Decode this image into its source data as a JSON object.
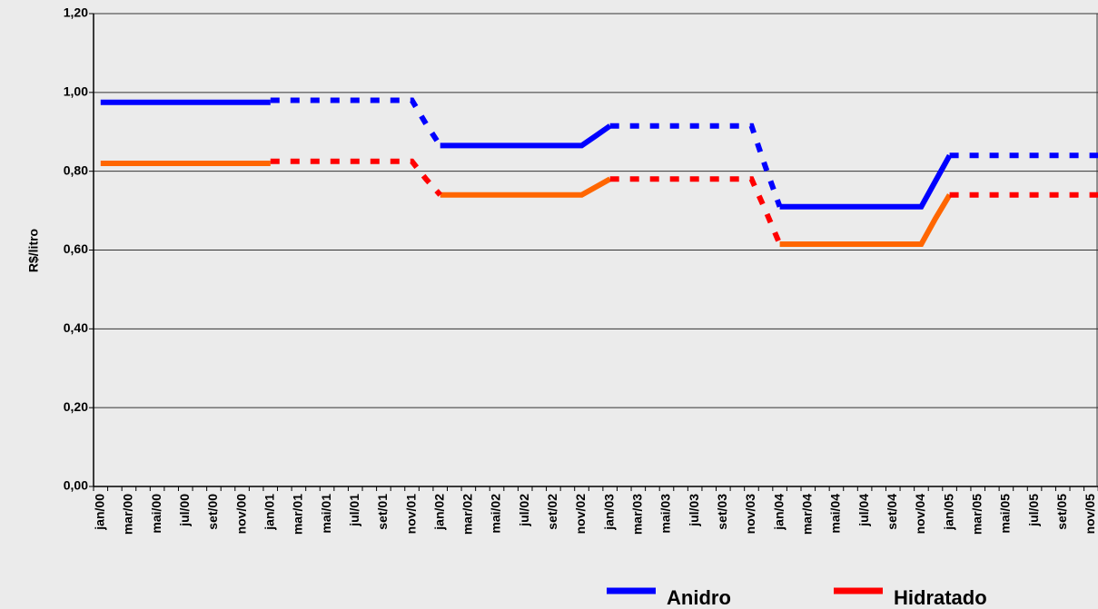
{
  "chart_data": {
    "type": "line",
    "y_label": "R$/litro",
    "categories": [
      "jan/00",
      null,
      "mar/00",
      null,
      "mai/00",
      null,
      "jul/00",
      null,
      "set/00",
      null,
      "nov/00",
      null,
      "jan/01",
      null,
      "mar/01",
      null,
      "mai/01",
      null,
      "jul/01",
      null,
      "set/01",
      null,
      "nov/01",
      null,
      "jan/02",
      null,
      "mar/02",
      null,
      "mai/02",
      null,
      "jul/02",
      null,
      "set/02",
      null,
      "nov/02",
      null,
      "jan/03",
      null,
      "mar/03",
      null,
      "mai/03",
      null,
      "jul/03",
      null,
      "set/03",
      null,
      "nov/03",
      null,
      "jan/04",
      null,
      "mar/04",
      null,
      "mai/04",
      null,
      "jul/04",
      null,
      "set/04",
      null,
      "nov/04",
      null,
      "jan/05",
      null,
      "mar/05",
      null,
      "mai/05",
      null,
      "jul/05",
      null,
      "set/05",
      null,
      "nov/05",
      null
    ],
    "ylim": [
      0,
      1.2
    ],
    "yticks": [
      {
        "value": 0,
        "label": "0,00"
      },
      {
        "value": 0.2,
        "label": "0,20"
      },
      {
        "value": 0.4,
        "label": "0,40"
      },
      {
        "value": 0.6,
        "label": "0,60"
      },
      {
        "value": 0.8,
        "label": "0,80"
      },
      {
        "value": 1,
        "label": "1,00"
      },
      {
        "value": 1.2,
        "label": "1,20"
      }
    ],
    "grid": true,
    "series": [
      {
        "name": "Anidro",
        "color": "#0000ff",
        "dashed": false,
        "values": [
          0.975,
          0.975,
          0.975,
          0.975,
          0.975,
          0.975,
          0.975,
          0.975,
          0.975,
          0.975,
          0.975,
          0.975,
          0.975,
          null,
          null,
          null,
          null,
          null,
          null,
          null,
          null,
          null,
          null,
          null,
          0.865,
          0.865,
          0.865,
          0.865,
          0.865,
          0.865,
          0.865,
          0.865,
          0.865,
          0.865,
          0.865,
          0.89,
          0.915,
          null,
          null,
          null,
          null,
          null,
          null,
          null,
          null,
          null,
          null,
          null,
          0.71,
          0.71,
          0.71,
          0.71,
          0.71,
          0.71,
          0.71,
          0.71,
          0.71,
          0.71,
          0.71,
          0.775,
          0.84,
          null,
          null,
          null,
          null,
          null,
          null,
          null,
          null,
          null,
          null,
          null
        ]
      },
      {
        "color": "#0000ff",
        "dashed": true,
        "values": [
          null,
          null,
          null,
          null,
          null,
          null,
          null,
          null,
          null,
          null,
          null,
          null,
          0.98,
          0.98,
          0.98,
          0.98,
          0.98,
          0.98,
          0.98,
          0.98,
          0.98,
          0.98,
          0.98,
          0.92,
          0.865,
          null,
          null,
          null,
          null,
          null,
          null,
          null,
          null,
          null,
          null,
          null,
          0.915,
          0.915,
          0.915,
          0.915,
          0.915,
          0.915,
          0.915,
          0.915,
          0.915,
          0.915,
          0.915,
          0.81,
          0.71,
          null,
          null,
          null,
          null,
          null,
          null,
          null,
          null,
          null,
          null,
          null,
          0.84,
          0.84,
          0.84,
          0.84,
          0.84,
          0.84,
          0.84,
          0.84,
          0.84,
          0.84,
          0.84,
          0.84
        ]
      },
      {
        "color": "#ff6600",
        "dashed": false,
        "values": [
          0.82,
          0.82,
          0.82,
          0.82,
          0.82,
          0.82,
          0.82,
          0.82,
          0.82,
          0.82,
          0.82,
          0.82,
          0.82,
          null,
          null,
          null,
          null,
          null,
          null,
          null,
          null,
          null,
          null,
          null,
          0.74,
          0.74,
          0.74,
          0.74,
          0.74,
          0.74,
          0.74,
          0.74,
          0.74,
          0.74,
          0.74,
          0.76,
          0.78,
          null,
          null,
          null,
          null,
          null,
          null,
          null,
          null,
          null,
          null,
          null,
          0.615,
          0.615,
          0.615,
          0.615,
          0.615,
          0.615,
          0.615,
          0.615,
          0.615,
          0.615,
          0.615,
          0.68,
          0.74,
          null,
          null,
          null,
          null,
          null,
          null,
          null,
          null,
          null,
          null,
          null
        ]
      },
      {
        "name": "Hidratado",
        "color": "#ff0000",
        "dashed": true,
        "values": [
          null,
          null,
          null,
          null,
          null,
          null,
          null,
          null,
          null,
          null,
          null,
          null,
          0.825,
          0.825,
          0.825,
          0.825,
          0.825,
          0.825,
          0.825,
          0.825,
          0.825,
          0.825,
          0.825,
          0.78,
          0.74,
          null,
          null,
          null,
          null,
          null,
          null,
          null,
          null,
          null,
          null,
          null,
          0.78,
          0.78,
          0.78,
          0.78,
          0.78,
          0.78,
          0.78,
          0.78,
          0.78,
          0.78,
          0.78,
          0.7,
          0.615,
          null,
          null,
          null,
          null,
          null,
          null,
          null,
          null,
          null,
          null,
          null,
          0.74,
          0.74,
          0.74,
          0.74,
          0.74,
          0.74,
          0.74,
          0.74,
          0.74,
          0.74,
          0.74,
          0.74
        ]
      }
    ]
  }
}
